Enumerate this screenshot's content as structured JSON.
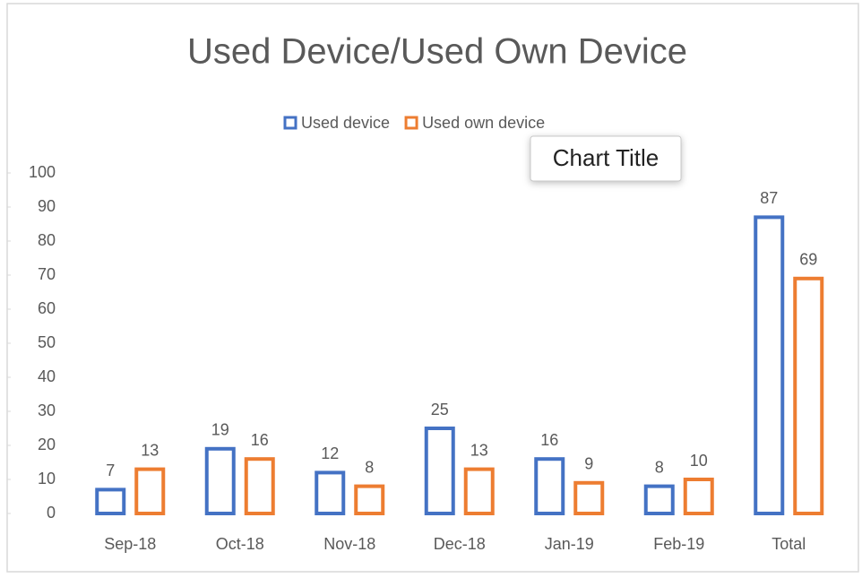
{
  "chart_data": {
    "type": "bar",
    "title": "Used Device/Used Own Device",
    "categories": [
      "Sep-18",
      "Oct-18",
      "Nov-18",
      "Dec-18",
      "Jan-19",
      "Feb-19",
      "Total"
    ],
    "series": [
      {
        "name": "Used device",
        "color": "#4472c4",
        "values": [
          7,
          19,
          12,
          25,
          16,
          8,
          87
        ]
      },
      {
        "name": "Used own device",
        "color": "#ed7d31",
        "values": [
          13,
          16,
          8,
          13,
          9,
          10,
          69
        ]
      }
    ],
    "ylim": [
      0,
      100
    ],
    "yticks": [
      0,
      10,
      20,
      30,
      40,
      50,
      60,
      70,
      80,
      90,
      100
    ],
    "grid": false,
    "legend": "top",
    "tooltip": "Chart Title"
  }
}
